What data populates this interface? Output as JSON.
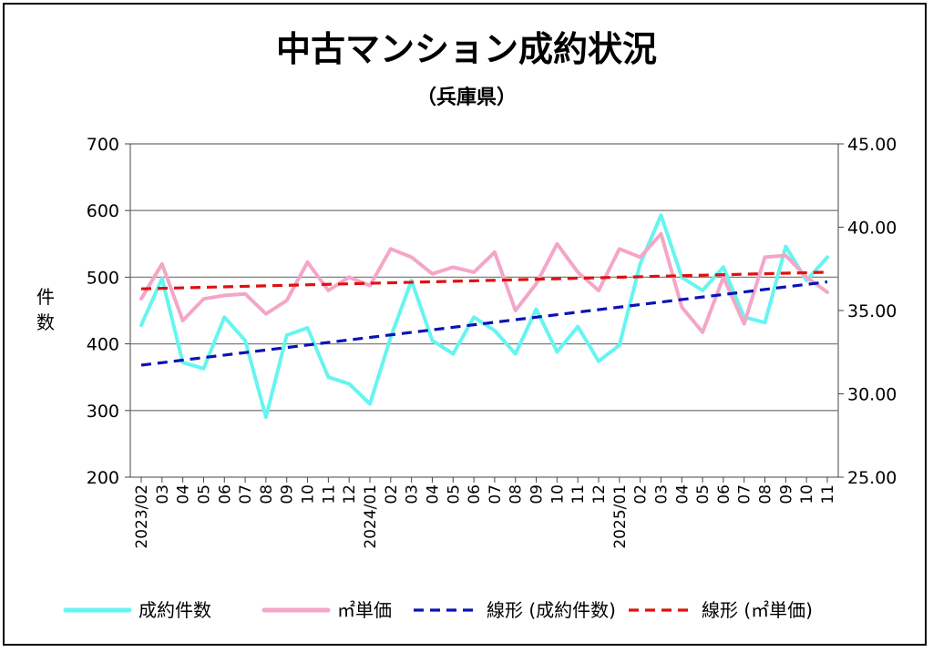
{
  "chart_data": {
    "type": "line",
    "title": "中古マンション成約状況",
    "subtitle": "（兵庫県）",
    "ylabel": "件数",
    "ylim": [
      200,
      700
    ],
    "y_ticks": [
      "700",
      "600",
      "500",
      "400",
      "300",
      "200"
    ],
    "y2lim": [
      25.0,
      45.0
    ],
    "y2_ticks": [
      "45.00",
      "40.00",
      "35.00",
      "30.00",
      "25.00"
    ],
    "grid": true,
    "legend_position": "bottom",
    "categories": [
      "2023/02",
      "03",
      "04",
      "05",
      "06",
      "07",
      "08",
      "09",
      "10",
      "11",
      "12",
      "2024/01",
      "02",
      "03",
      "04",
      "05",
      "06",
      "07",
      "08",
      "09",
      "10",
      "11",
      "12",
      "2025/01",
      "02",
      "03",
      "04",
      "05",
      "06",
      "07",
      "08",
      "09",
      "10",
      "11"
    ],
    "series": [
      {
        "name": "成約件数",
        "axis": "left",
        "color": "#66f5f0",
        "style": "solid",
        "values": [
          428,
          498,
          372,
          363,
          440,
          405,
          290,
          413,
          424,
          350,
          340,
          310,
          410,
          495,
          405,
          385,
          440,
          420,
          385,
          452,
          388,
          426,
          374,
          398,
          520,
          593,
          500,
          480,
          515,
          440,
          432,
          546,
          495,
          530
        ]
      },
      {
        "name": "㎡単価",
        "axis": "right",
        "color": "#f4a6c8",
        "style": "solid",
        "values": [
          35.7,
          37.8,
          34.4,
          35.7,
          35.9,
          36.0,
          34.8,
          35.6,
          37.9,
          36.2,
          37.0,
          36.5,
          38.7,
          38.2,
          37.2,
          37.6,
          37.3,
          38.5,
          35.0,
          36.6,
          39.0,
          37.3,
          36.2,
          38.7,
          38.2,
          39.6,
          35.2,
          33.7,
          37.0,
          34.2,
          38.2,
          38.3,
          37.0,
          36.1
        ]
      },
      {
        "name": "線形 (成約件数)",
        "axis": "left",
        "color": "#0a14b4",
        "style": "dashed",
        "trend_of": "成約件数",
        "start": 368,
        "end": 493
      },
      {
        "name": "線形 (㎡単価)",
        "axis": "right",
        "color": "#e01010",
        "style": "dashed",
        "trend_of": "㎡単価",
        "start": 36.3,
        "end": 37.3
      }
    ]
  }
}
